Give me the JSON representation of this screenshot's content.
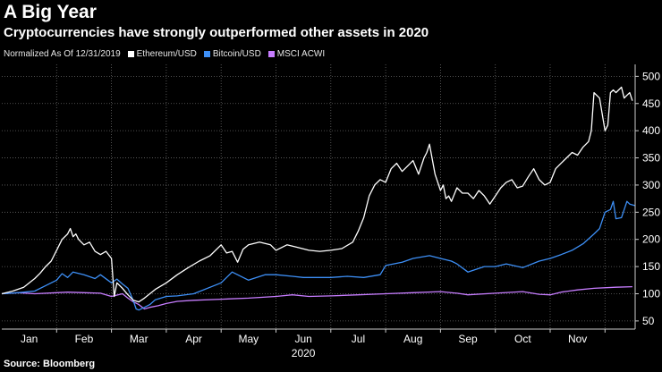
{
  "header": {
    "title": "A Big Year",
    "subtitle": "Cryptocurrencies have strongly outperformed other assets in 2020"
  },
  "footer": {
    "source": "Source: Bloomberg"
  },
  "chart_data": {
    "type": "line",
    "title": "A Big Year",
    "subtitle": "Cryptocurrencies have strongly outperformed other assets in 2020",
    "legend_note": "Normalized As Of 12/31/2019",
    "xlabel": "2020",
    "ylabel": "",
    "x_unit": "months since Jan 1, 2020",
    "xlim": [
      0,
      11.55
    ],
    "ylim": [
      35,
      522
    ],
    "y_ticks": [
      50,
      100,
      150,
      200,
      250,
      300,
      350,
      400,
      450,
      500
    ],
    "x_ticks": [
      {
        "label": "Jan",
        "pos": 0.5
      },
      {
        "label": "Feb",
        "pos": 1.5
      },
      {
        "label": "Mar",
        "pos": 2.5
      },
      {
        "label": "Apr",
        "pos": 3.5
      },
      {
        "label": "May",
        "pos": 4.5
      },
      {
        "label": "Jun",
        "pos": 5.5
      },
      {
        "label": "Jul",
        "pos": 6.5
      },
      {
        "label": "Aug",
        "pos": 7.5
      },
      {
        "label": "Sep",
        "pos": 8.5
      },
      {
        "label": "Oct",
        "pos": 9.5
      },
      {
        "label": "Nov",
        "pos": 10.5
      }
    ],
    "grid": true,
    "series": [
      {
        "name": "MSCI ACWI",
        "color": "#c77dff",
        "x": [
          0,
          0.3,
          0.6,
          1,
          1.2,
          1.5,
          1.8,
          2,
          2.2,
          2.3,
          2.4,
          2.5,
          2.6,
          2.7,
          2.85,
          3,
          3.2,
          3.5,
          4,
          4.5,
          5,
          5.3,
          5.6,
          6,
          6.5,
          7,
          7.5,
          8,
          8.3,
          8.5,
          9,
          9.5,
          9.8,
          10,
          10.2,
          10.5,
          10.8,
          11.2,
          11.5
        ],
        "values": [
          100,
          102,
          100,
          102,
          103,
          102,
          101,
          95,
          100,
          92,
          85,
          80,
          72,
          75,
          78,
          82,
          86,
          88,
          90,
          92,
          95,
          98,
          95,
          96,
          98,
          100,
          102,
          104,
          101,
          98,
          101,
          104,
          99,
          98,
          103,
          107,
          110,
          112,
          113
        ]
      },
      {
        "name": "Bitcoin/USD",
        "color": "#3d8ff6",
        "x": [
          0,
          0.3,
          0.6,
          0.8,
          1,
          1.1,
          1.2,
          1.3,
          1.5,
          1.7,
          1.8,
          2,
          2.1,
          2.2,
          2.3,
          2.4,
          2.45,
          2.5,
          2.6,
          2.7,
          2.8,
          3,
          3.2,
          3.5,
          4,
          4.2,
          4.5,
          4.8,
          5,
          5.3,
          5.5,
          6,
          6.3,
          6.6,
          6.9,
          7,
          7.3,
          7.5,
          7.8,
          8,
          8.2,
          8.3,
          8.5,
          8.8,
          9,
          9.2,
          9.5,
          9.8,
          10,
          10.2,
          10.4,
          10.6,
          10.8,
          10.9,
          11,
          11.1,
          11.15,
          11.2,
          11.3,
          11.4,
          11.45,
          11.55
        ],
        "values": [
          100,
          102,
          105,
          115,
          125,
          137,
          130,
          140,
          135,
          128,
          135,
          120,
          127,
          118,
          110,
          87,
          72,
          70,
          75,
          80,
          89,
          95,
          96,
          100,
          120,
          140,
          125,
          135,
          135,
          132,
          130,
          130,
          132,
          130,
          135,
          152,
          158,
          165,
          170,
          165,
          160,
          155,
          140,
          150,
          150,
          155,
          148,
          160,
          165,
          172,
          180,
          192,
          210,
          220,
          250,
          255,
          270,
          238,
          240,
          270,
          265,
          262
        ]
      },
      {
        "name": "Ethereum/USD",
        "color": "#ffffff",
        "x": [
          0,
          0.2,
          0.4,
          0.6,
          0.7,
          0.8,
          0.9,
          1,
          1.1,
          1.2,
          1.25,
          1.3,
          1.35,
          1.4,
          1.5,
          1.6,
          1.7,
          1.8,
          1.9,
          2,
          2.05,
          2.1,
          2.2,
          2.3,
          2.4,
          2.5,
          2.6,
          2.7,
          2.8,
          3,
          3.2,
          3.4,
          3.6,
          3.8,
          4,
          4.1,
          4.2,
          4.3,
          4.4,
          4.5,
          4.7,
          4.9,
          5,
          5.2,
          5.4,
          5.6,
          5.8,
          6,
          6.2,
          6.4,
          6.5,
          6.6,
          6.7,
          6.8,
          6.9,
          7,
          7.1,
          7.2,
          7.3,
          7.4,
          7.5,
          7.6,
          7.7,
          7.75,
          7.8,
          7.9,
          8,
          8.05,
          8.1,
          8.15,
          8.2,
          8.3,
          8.4,
          8.5,
          8.55,
          8.6,
          8.7,
          8.8,
          8.9,
          9,
          9.1,
          9.2,
          9.3,
          9.4,
          9.5,
          9.6,
          9.7,
          9.8,
          9.9,
          10,
          10.1,
          10.2,
          10.3,
          10.4,
          10.5,
          10.6,
          10.7,
          10.75,
          10.8,
          10.9,
          11,
          11.05,
          11.1,
          11.15,
          11.2,
          11.3,
          11.35,
          11.4,
          11.45,
          11.5
        ],
        "values": [
          100,
          105,
          112,
          128,
          138,
          150,
          160,
          180,
          200,
          210,
          220,
          205,
          210,
          200,
          190,
          195,
          178,
          172,
          178,
          165,
          95,
          120,
          110,
          98,
          88,
          85,
          92,
          100,
          108,
          120,
          135,
          148,
          160,
          170,
          190,
          175,
          178,
          158,
          182,
          190,
          195,
          190,
          180,
          190,
          185,
          180,
          178,
          180,
          183,
          195,
          215,
          240,
          280,
          300,
          310,
          305,
          330,
          340,
          325,
          335,
          345,
          320,
          350,
          360,
          375,
          320,
          290,
          300,
          275,
          280,
          270,
          295,
          285,
          285,
          280,
          275,
          290,
          280,
          265,
          280,
          295,
          305,
          310,
          295,
          298,
          315,
          330,
          310,
          300,
          305,
          330,
          340,
          350,
          360,
          355,
          370,
          380,
          400,
          470,
          460,
          400,
          410,
          470,
          475,
          470,
          480,
          460,
          465,
          470,
          455
        ]
      }
    ]
  }
}
